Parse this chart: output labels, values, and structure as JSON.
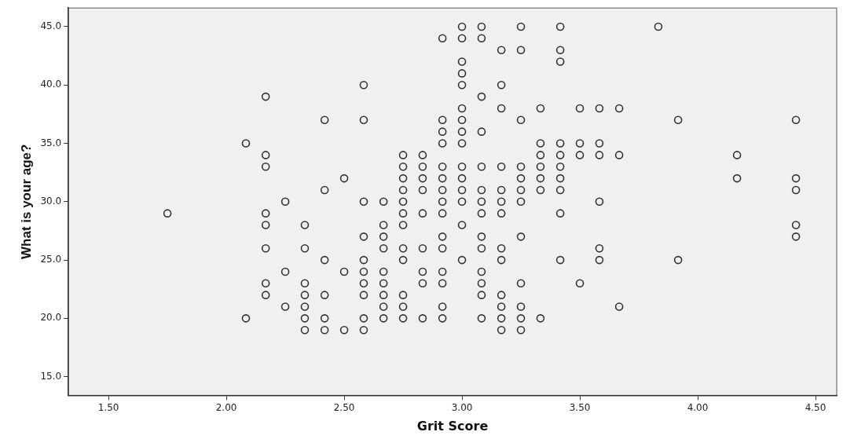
{
  "chart_data": {
    "type": "scatter",
    "xlabel": "Grit Score",
    "ylabel": "What is your age?",
    "x": [
      1.75,
      2.083,
      2.083,
      2.167,
      2.167,
      2.167,
      2.167,
      2.167,
      2.167,
      2.167,
      2.167,
      2.25,
      2.25,
      2.25,
      2.333,
      2.333,
      2.333,
      2.333,
      2.333,
      2.333,
      2.333,
      2.417,
      2.417,
      2.417,
      2.417,
      2.417,
      2.417,
      2.5,
      2.5,
      2.5,
      2.583,
      2.583,
      2.583,
      2.583,
      2.583,
      2.583,
      2.583,
      2.583,
      2.583,
      2.583,
      2.667,
      2.667,
      2.667,
      2.667,
      2.667,
      2.667,
      2.667,
      2.667,
      2.667,
      2.75,
      2.75,
      2.75,
      2.75,
      2.75,
      2.75,
      2.75,
      2.75,
      2.75,
      2.75,
      2.75,
      2.75,
      2.833,
      2.833,
      2.833,
      2.833,
      2.833,
      2.833,
      2.833,
      2.833,
      2.833,
      2.917,
      2.917,
      2.917,
      2.917,
      2.917,
      2.917,
      2.917,
      2.917,
      2.917,
      2.917,
      2.917,
      2.917,
      2.917,
      2.917,
      2.917,
      3.0,
      3.0,
      3.0,
      3.0,
      3.0,
      3.0,
      3.0,
      3.0,
      3.0,
      3.0,
      3.0,
      3.0,
      3.0,
      3.0,
      3.0,
      3.083,
      3.083,
      3.083,
      3.083,
      3.083,
      3.083,
      3.083,
      3.083,
      3.083,
      3.083,
      3.083,
      3.083,
      3.083,
      3.083,
      3.167,
      3.167,
      3.167,
      3.167,
      3.167,
      3.167,
      3.167,
      3.167,
      3.167,
      3.167,
      3.167,
      3.167,
      3.167,
      3.25,
      3.25,
      3.25,
      3.25,
      3.25,
      3.25,
      3.25,
      3.25,
      3.25,
      3.25,
      3.25,
      3.25,
      3.333,
      3.333,
      3.333,
      3.333,
      3.333,
      3.333,
      3.333,
      3.417,
      3.417,
      3.417,
      3.417,
      3.417,
      3.417,
      3.417,
      3.417,
      3.417,
      3.417,
      3.5,
      3.5,
      3.5,
      3.5,
      3.583,
      3.583,
      3.583,
      3.583,
      3.583,
      3.583,
      3.667,
      3.667,
      3.667,
      3.833,
      3.917,
      3.917,
      4.167,
      4.167,
      4.417,
      4.417,
      4.417,
      4.417,
      4.417
    ],
    "values": [
      29,
      35,
      20,
      39,
      34,
      33,
      29,
      28,
      26,
      23,
      22,
      30,
      24,
      21,
      28,
      26,
      23,
      22,
      21,
      20,
      19,
      37,
      31,
      25,
      22,
      20,
      19,
      32,
      24,
      19,
      40,
      37,
      30,
      27,
      25,
      24,
      23,
      22,
      20,
      19,
      30,
      28,
      27,
      26,
      24,
      23,
      22,
      21,
      20,
      34,
      33,
      32,
      31,
      30,
      29,
      28,
      26,
      25,
      22,
      21,
      20,
      34,
      33,
      32,
      31,
      29,
      26,
      24,
      23,
      20,
      44,
      37,
      36,
      35,
      33,
      32,
      31,
      30,
      29,
      27,
      26,
      24,
      23,
      21,
      20,
      45,
      44,
      42,
      41,
      40,
      38,
      37,
      36,
      35,
      33,
      32,
      31,
      30,
      28,
      25,
      45,
      44,
      39,
      36,
      33,
      31,
      30,
      29,
      27,
      26,
      24,
      23,
      22,
      20,
      43,
      40,
      38,
      33,
      31,
      30,
      29,
      26,
      25,
      22,
      21,
      20,
      19,
      45,
      43,
      37,
      33,
      32,
      31,
      30,
      27,
      23,
      21,
      20,
      19,
      38,
      35,
      34,
      33,
      32,
      31,
      20,
      45,
      43,
      42,
      35,
      34,
      33,
      32,
      31,
      29,
      25,
      38,
      35,
      34,
      23,
      38,
      35,
      34,
      30,
      26,
      25,
      38,
      34,
      21,
      45,
      37,
      25,
      34,
      32,
      37,
      32,
      31,
      28,
      27
    ],
    "color": "#333333",
    "marker": "circle",
    "xlim": [
      1.33,
      4.59
    ],
    "xticks": [
      {
        "value": 1.5,
        "label": "1.50"
      },
      {
        "value": 2,
        "label": "2.00"
      },
      {
        "value": 2.5,
        "label": "2.50"
      },
      {
        "value": 3,
        "label": "3.00"
      },
      {
        "value": 3.5,
        "label": "3.50"
      },
      {
        "value": 4,
        "label": "4.00"
      },
      {
        "value": 4.5,
        "label": "4.50"
      }
    ],
    "ylim": [
      13.4,
      46.6
    ],
    "yticks": [
      {
        "value": 15,
        "label": "15.0"
      },
      {
        "value": 20,
        "label": "20.0"
      },
      {
        "value": 25,
        "label": "25.0"
      },
      {
        "value": 30,
        "label": "30.0"
      },
      {
        "value": 35,
        "label": "35.0"
      },
      {
        "value": 40,
        "label": "40.0"
      },
      {
        "value": 45,
        "label": "45.0"
      }
    ],
    "grid": false,
    "legend": false
  }
}
